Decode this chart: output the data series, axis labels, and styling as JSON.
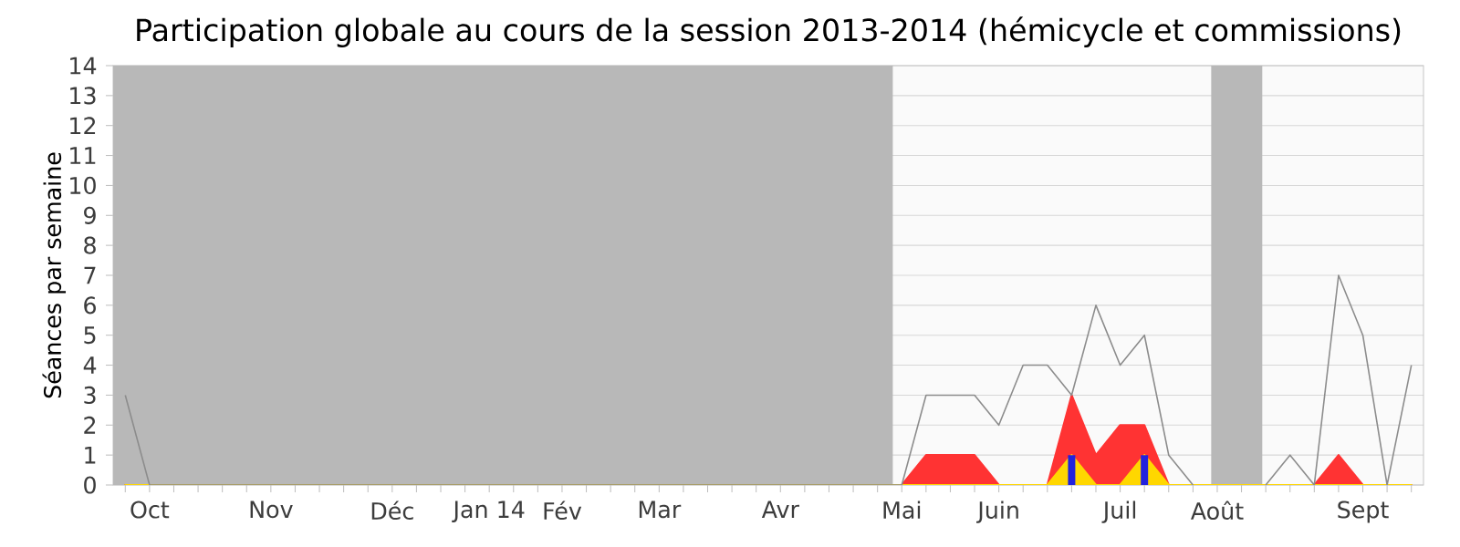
{
  "chart_data": {
    "type": "area",
    "title": "Participation globale au cours de la session 2013-2014 (hémicycle et commissions)",
    "ylabel": "Séances par semaine",
    "categories": [
      null,
      "Oct",
      null,
      null,
      null,
      null,
      "Nov",
      null,
      null,
      null,
      null,
      "Déc",
      null,
      null,
      null,
      "Jan 14",
      null,
      null,
      "Fév",
      null,
      null,
      null,
      "Mar",
      null,
      null,
      null,
      null,
      "Avr",
      null,
      null,
      null,
      null,
      "Mai",
      null,
      null,
      null,
      "Juin",
      null,
      null,
      null,
      null,
      "Juil",
      null,
      null,
      null,
      "Août",
      null,
      null,
      null,
      null,
      null,
      "Sept",
      null,
      null
    ],
    "series": [
      {
        "color": "#ff3333",
        "values": [
          0,
          0,
          0,
          0,
          0,
          0,
          0,
          0,
          0,
          0,
          0,
          0,
          0,
          0,
          0,
          0,
          0,
          0,
          0,
          0,
          0,
          0,
          0,
          0,
          0,
          0,
          0,
          0,
          0,
          0,
          0,
          0,
          0,
          1,
          1,
          1,
          0,
          0,
          0,
          3,
          1,
          2,
          2,
          0,
          0,
          0,
          0,
          0,
          0,
          0,
          1,
          0,
          0,
          0
        ]
      },
      {
        "color": "#ffd700",
        "values": [
          0,
          0,
          0,
          0,
          0,
          0,
          0,
          0,
          0,
          0,
          0,
          0,
          0,
          0,
          0,
          0,
          0,
          0,
          0,
          0,
          0,
          0,
          0,
          0,
          0,
          0,
          0,
          0,
          0,
          0,
          0,
          0,
          0,
          0,
          0,
          0,
          0,
          0,
          0,
          1,
          0,
          0,
          1,
          0,
          0,
          0,
          0,
          0,
          0,
          0,
          0,
          0,
          0,
          0
        ]
      },
      {
        "type": "bar",
        "color": "#2222dd",
        "values": [
          null,
          null,
          null,
          null,
          null,
          null,
          null,
          null,
          null,
          null,
          null,
          null,
          null,
          null,
          null,
          null,
          null,
          null,
          null,
          null,
          null,
          null,
          null,
          null,
          null,
          null,
          null,
          null,
          null,
          null,
          null,
          null,
          null,
          null,
          null,
          null,
          null,
          null,
          null,
          1,
          null,
          null,
          1,
          null,
          null,
          null,
          null,
          null,
          null,
          null,
          null,
          null,
          null,
          null
        ]
      },
      {
        "type": "line",
        "color": "#8c8c8c",
        "values": [
          3,
          0,
          0,
          0,
          0,
          0,
          0,
          0,
          0,
          0,
          0,
          0,
          0,
          0,
          0,
          0,
          0,
          0,
          0,
          0,
          0,
          0,
          0,
          0,
          0,
          0,
          0,
          0,
          0,
          0,
          0,
          0,
          0,
          3,
          3,
          3,
          2,
          4,
          4,
          3,
          6,
          4,
          5,
          1,
          0,
          null,
          null,
          0,
          1,
          0,
          7,
          5,
          0,
          4
        ]
      }
    ],
    "ylim": [
      0,
      14
    ],
    "yticks": [
      0,
      1,
      2,
      3,
      4,
      5,
      6,
      7,
      8,
      9,
      10,
      11,
      12,
      13,
      14
    ],
    "grid": "y"
  }
}
